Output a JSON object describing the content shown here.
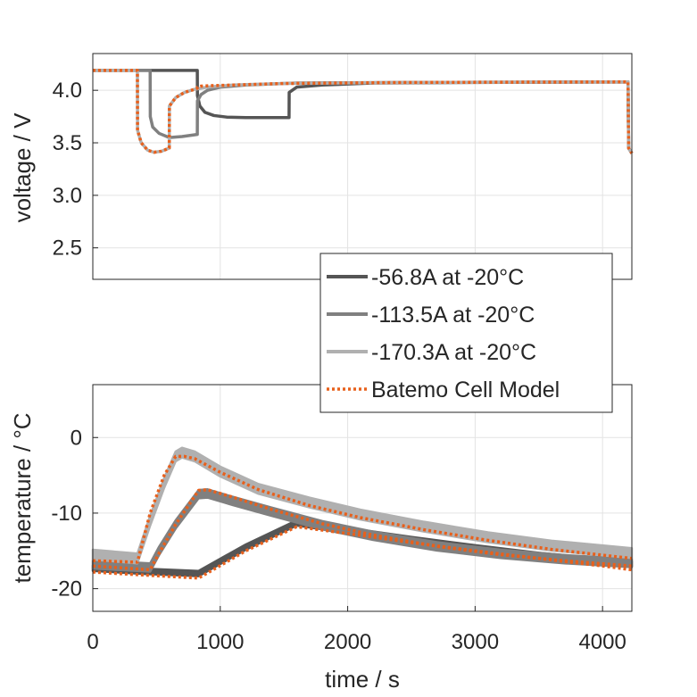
{
  "chart_data": [
    {
      "type": "line",
      "ylabel": "voltage / V",
      "xlim": [
        0,
        4230
      ],
      "ylim": [
        2.2,
        4.35
      ],
      "yticks": [
        2.5,
        3.0,
        3.5,
        4.0
      ],
      "ytick_labels": [
        "2.5",
        "3.0",
        "3.5",
        "4.0"
      ],
      "grid": true,
      "series": [
        {
          "name": "-56.8A at -20°C",
          "color": "#555555",
          "style": "solid",
          "x": [
            0,
            820,
            821,
            840,
            880,
            950,
            1050,
            1200,
            1540,
            1541,
            1600,
            1800,
            2200,
            3000,
            4200,
            4205,
            4230
          ],
          "y": [
            4.19,
            4.19,
            3.95,
            3.85,
            3.79,
            3.76,
            3.745,
            3.74,
            3.74,
            3.98,
            4.03,
            4.05,
            4.07,
            4.075,
            4.08,
            3.45,
            3.4
          ]
        },
        {
          "name": "-113.5A at -20°C",
          "color": "#808080",
          "style": "solid",
          "x": [
            0,
            450,
            451,
            470,
            520,
            600,
            700,
            820,
            821,
            850,
            900,
            1000,
            1200,
            1600,
            2500,
            4200,
            4205,
            4230
          ],
          "y": [
            4.19,
            4.19,
            3.75,
            3.65,
            3.59,
            3.55,
            3.56,
            3.58,
            3.9,
            3.96,
            4.0,
            4.03,
            4.05,
            4.07,
            4.075,
            4.08,
            3.45,
            3.4
          ]
        },
        {
          "name": "-170.3A at -20°C",
          "color": "#b0b0b0",
          "style": "solid",
          "x": [
            0,
            350,
            351,
            380,
            430,
            480,
            540,
            600,
            601,
            650,
            720,
            800,
            900,
            1100,
            1500,
            2500,
            4200,
            4205,
            4230
          ],
          "y": [
            4.19,
            4.19,
            3.62,
            3.5,
            3.43,
            3.41,
            3.42,
            3.45,
            3.85,
            3.93,
            3.98,
            4.01,
            4.03,
            4.05,
            4.065,
            4.075,
            4.08,
            3.45,
            3.4
          ]
        },
        {
          "name": "Batemo Cell Model",
          "color": "#e8601c",
          "style": "dotted",
          "x": [
            0,
            350,
            351,
            380,
            430,
            480,
            540,
            600,
            601,
            650,
            720,
            800,
            820,
            821,
            850,
            950,
            1100,
            1500,
            2500,
            4200,
            4205,
            4230
          ],
          "y": [
            4.19,
            4.19,
            3.62,
            3.5,
            3.43,
            3.41,
            3.42,
            3.45,
            3.85,
            3.93,
            3.98,
            4.01,
            4.02,
            4.03,
            4.04,
            4.045,
            4.05,
            4.065,
            4.075,
            4.08,
            3.45,
            3.4
          ]
        }
      ]
    },
    {
      "type": "line",
      "xlabel": "time / s",
      "ylabel": "temperature / °C",
      "xlim": [
        0,
        4230
      ],
      "ylim": [
        -23,
        7
      ],
      "xticks": [
        0,
        1000,
        2000,
        3000,
        4000
      ],
      "xtick_labels": [
        "0",
        "1000",
        "2000",
        "3000",
        "4000"
      ],
      "yticks": [
        -20,
        -10,
        0
      ],
      "ytick_labels": [
        "-20",
        "-10",
        "0"
      ],
      "grid": true,
      "series": [
        {
          "name": "-56.8A at -20°C",
          "color": "#555555",
          "style": "band",
          "x": [
            0,
            400,
            830,
            1200,
            1600,
            2000,
            2500,
            3000,
            3500,
            4000,
            4230
          ],
          "y": [
            -17.3,
            -17.7,
            -18.0,
            -14.5,
            -11.3,
            -12.3,
            -13.5,
            -14.6,
            -15.6,
            -16.4,
            -16.7
          ],
          "band": 0.7
        },
        {
          "name": "-113.5A at -20°C",
          "color": "#808080",
          "style": "band",
          "x": [
            0,
            450,
            520,
            650,
            830,
            900,
            1100,
            1400,
            1800,
            2200,
            2700,
            3200,
            3700,
            4230
          ],
          "y": [
            -16.8,
            -17.2,
            -15.0,
            -11.5,
            -7.5,
            -7.4,
            -8.4,
            -9.8,
            -11.6,
            -13.0,
            -14.4,
            -15.4,
            -16.1,
            -16.6
          ],
          "band": 1.1
        },
        {
          "name": "-170.3A at -20°C",
          "color": "#b0b0b0",
          "style": "band",
          "x": [
            0,
            350,
            450,
            560,
            650,
            700,
            800,
            1000,
            1300,
            1700,
            2100,
            2600,
            3100,
            3600,
            4230
          ],
          "y": [
            -15.5,
            -16.0,
            -11.0,
            -6.0,
            -2.5,
            -2.0,
            -2.5,
            -4.5,
            -6.8,
            -8.6,
            -10.2,
            -11.8,
            -13.2,
            -14.3,
            -15.3
          ],
          "band": 1.3
        },
        {
          "name": "Batemo Cell Model",
          "color": "#e8601c",
          "style": "dotted",
          "x": [
            0,
            350,
            450,
            560,
            650,
            720,
            800,
            1000,
            1300,
            1700,
            2100,
            2600,
            3100,
            3600,
            4230
          ],
          "y": [
            -16.3,
            -16.5,
            -10.0,
            -5.0,
            -2.5,
            -2.5,
            -2.8,
            -4.6,
            -6.9,
            -9.0,
            -10.6,
            -12.2,
            -13.6,
            -14.8,
            -16.0
          ]
        },
        {
          "name": "Batemo Cell Model",
          "color": "#e8601c",
          "style": "dotted",
          "x": [
            0,
            450,
            520,
            650,
            830,
            900,
            1100,
            1400,
            1800,
            2200,
            2700,
            3200,
            3700,
            4230
          ],
          "y": [
            -17.0,
            -17.5,
            -15.3,
            -11.5,
            -7.0,
            -6.9,
            -7.9,
            -9.5,
            -11.4,
            -12.9,
            -14.4,
            -15.5,
            -16.3,
            -17.0
          ]
        },
        {
          "name": "Batemo Cell Model",
          "color": "#e8601c",
          "style": "dotted",
          "x": [
            0,
            400,
            830,
            1200,
            1600,
            2000,
            2500,
            3000,
            3500,
            4000,
            4230
          ],
          "y": [
            -17.8,
            -18.2,
            -18.6,
            -15.0,
            -11.8,
            -12.7,
            -13.9,
            -15.0,
            -16.0,
            -17.0,
            -17.5
          ]
        }
      ]
    }
  ],
  "legend": {
    "placement": "center-right",
    "entries": [
      {
        "label": "-56.8A at -20°C",
        "color": "#555555",
        "style": "solid"
      },
      {
        "label": "-113.5A at -20°C",
        "color": "#808080",
        "style": "solid"
      },
      {
        "label": "-170.3A at -20°C",
        "color": "#b0b0b0",
        "style": "solid"
      },
      {
        "label": "Batemo Cell Model",
        "color": "#e8601c",
        "style": "dotted"
      }
    ]
  }
}
